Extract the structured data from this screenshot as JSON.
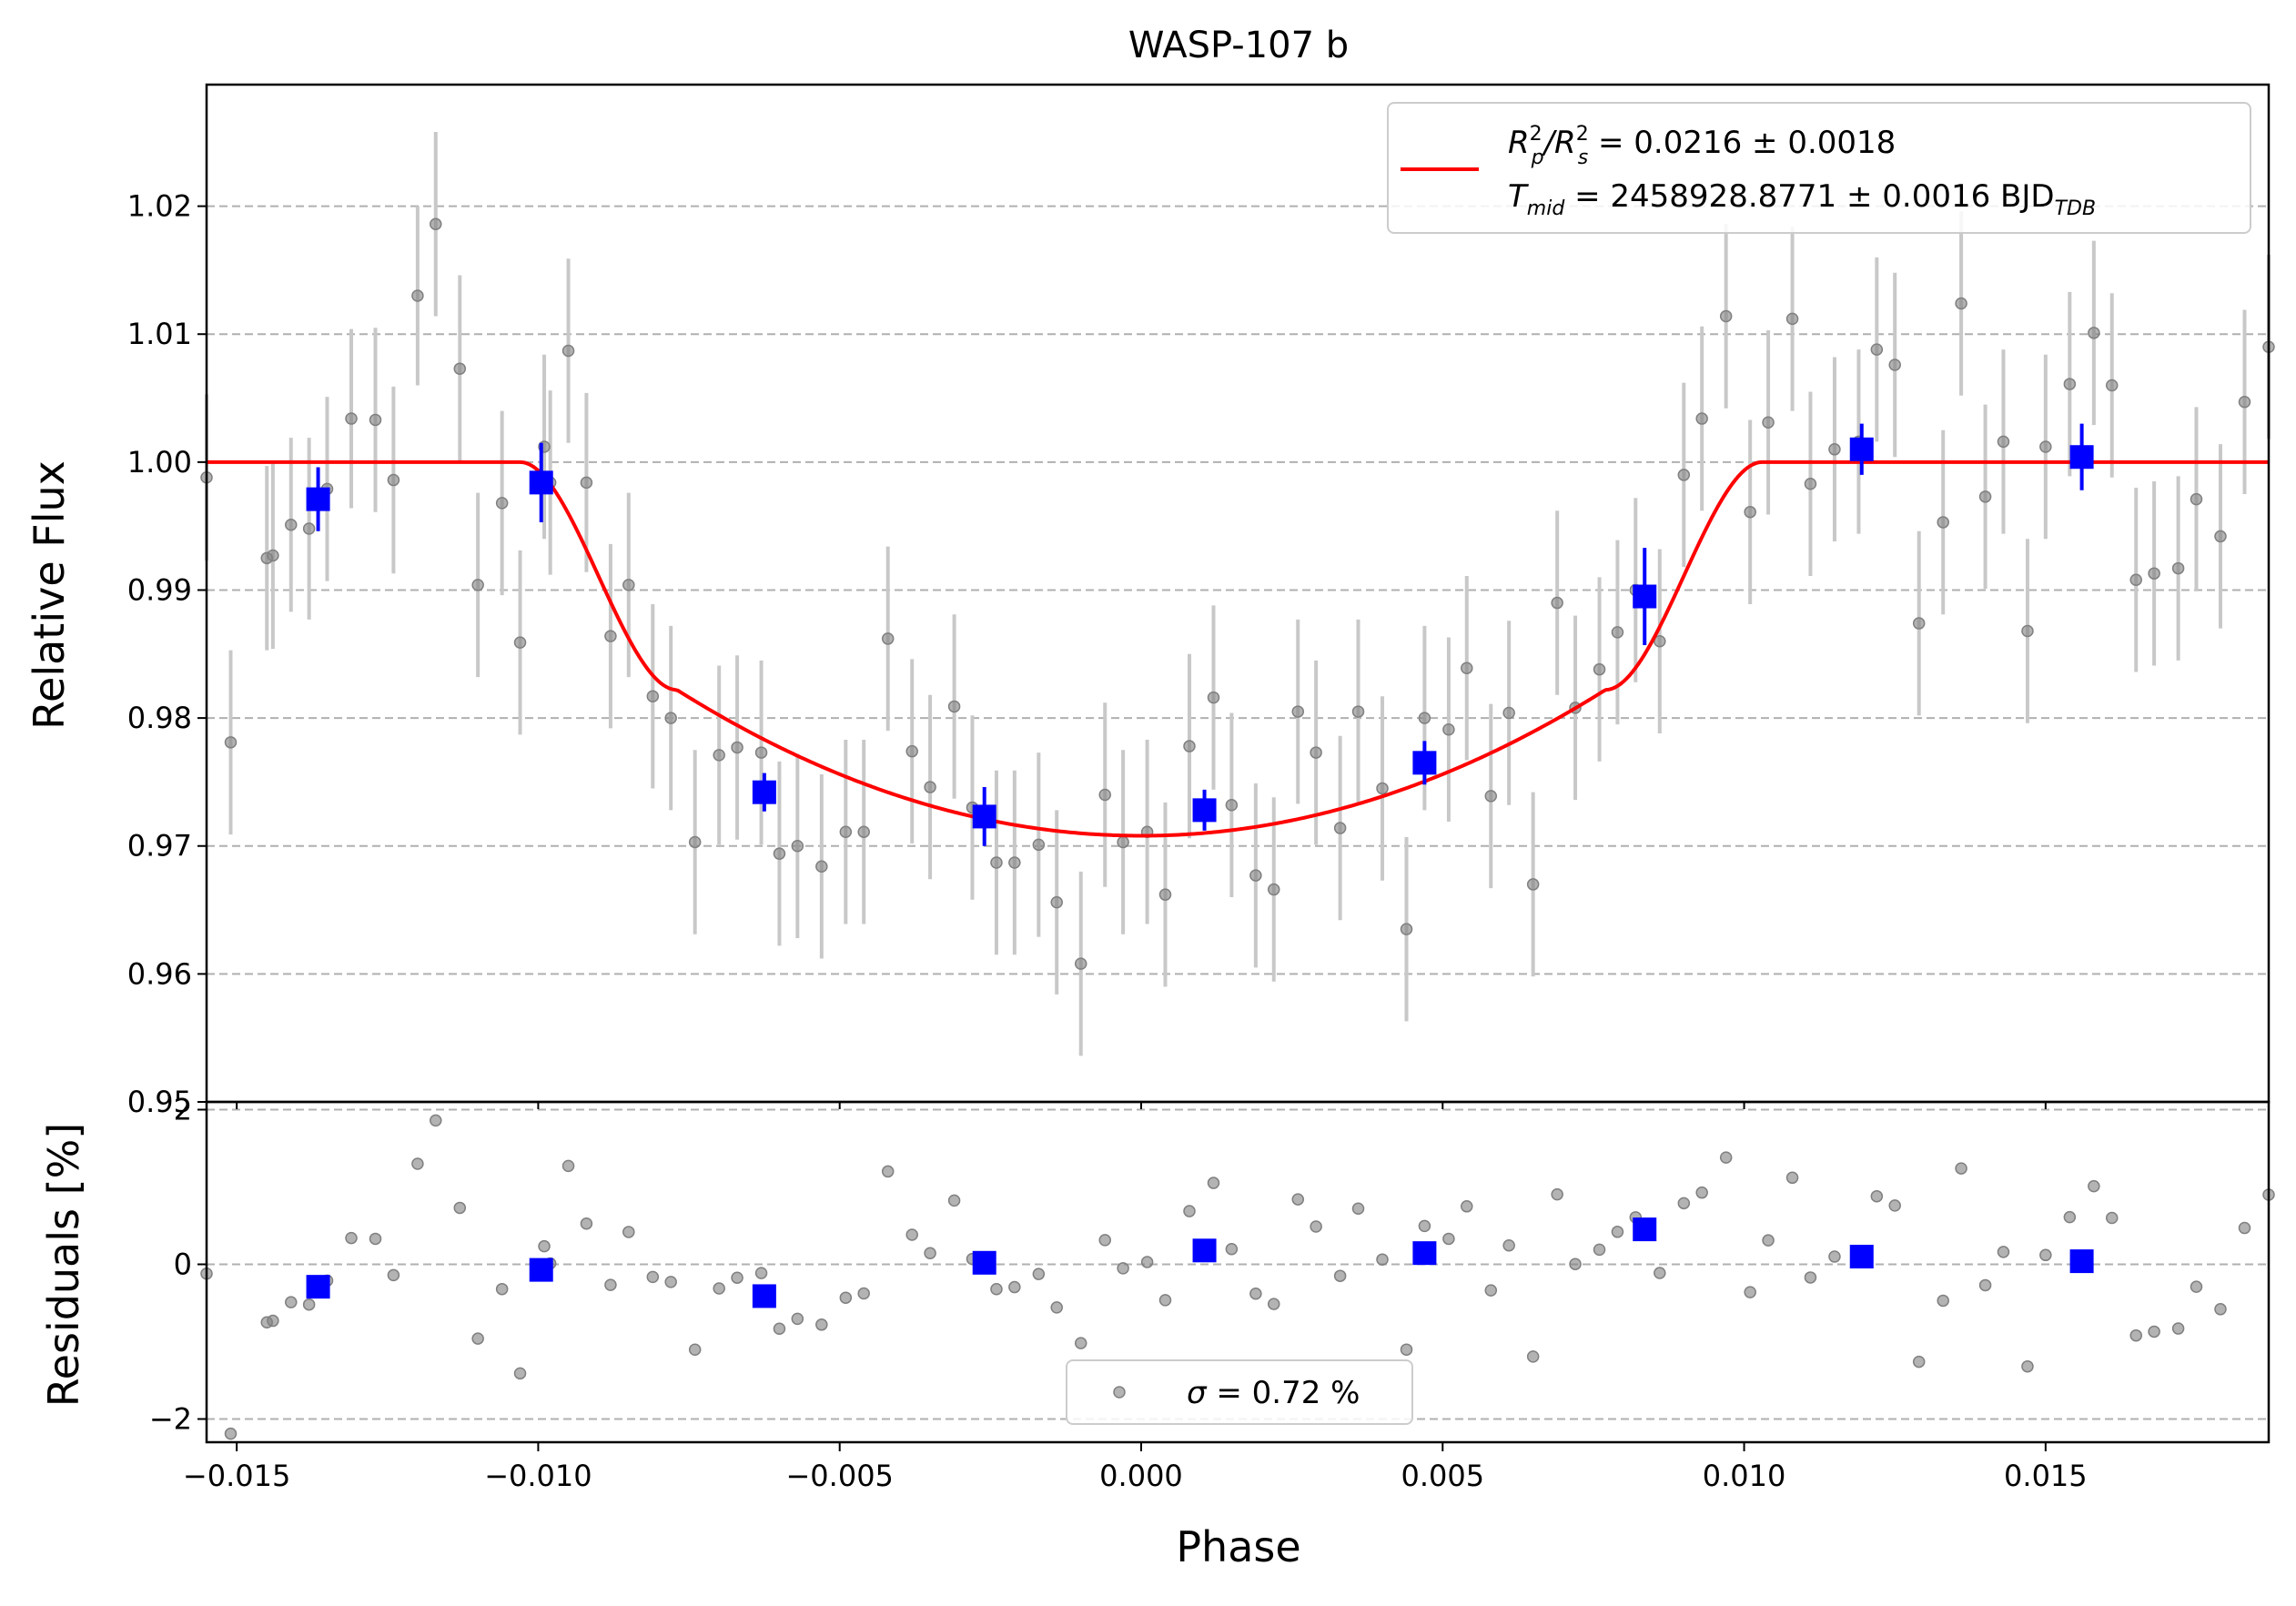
{
  "chart_data": [
    {
      "panel": "light-curve",
      "type": "scatter",
      "title": "WASP-107 b",
      "xlabel": "Phase",
      "ylabel": "Relative Flux",
      "xlim": [
        -0.0155,
        0.0187
      ],
      "ylim": [
        0.95,
        1.0295
      ],
      "xticks": [
        -0.015,
        -0.01,
        -0.005,
        0.0,
        0.005,
        0.01,
        0.015
      ],
      "xtick_labels": [
        "−0.015",
        "−0.010",
        "−0.005",
        "0.000",
        "0.005",
        "0.010",
        "0.015"
      ],
      "yticks": [
        0.95,
        0.96,
        0.97,
        0.98,
        0.99,
        1.0,
        1.01,
        1.02
      ],
      "ytick_labels": [
        "0.95",
        "0.96",
        "0.97",
        "0.98",
        "0.99",
        "1.00",
        "1.01",
        "1.02"
      ],
      "grid": "horizontal dashed",
      "legend_position": "top-right",
      "legend": {
        "line1": {
          "prefix": "R",
          "sub1": "p",
          "mid": "/R",
          "sub2": "s",
          "rest": " = 0.0216 ± 0.0018",
          "sup": "2"
        },
        "line2": {
          "prefix": "T",
          "sub1": "mid",
          "rest": " = 2458928.8771 ± 0.0016 BJD",
          "sub2": "TDB"
        }
      },
      "colors": {
        "data": "#808080",
        "error": "#c8c8c8",
        "binned": "#0000ff",
        "model": "#ff0000",
        "grid": "#b0b0b0"
      },
      "data_points": [
        [
          -0.0155,
          0.9988,
          0.0065
        ],
        [
          -0.0151,
          0.9781,
          0.0072
        ],
        [
          -0.0145,
          0.9925,
          0.0072
        ],
        [
          -0.0144,
          0.9927,
          0.0073
        ],
        [
          -0.0141,
          0.9951,
          0.0068
        ],
        [
          -0.0138,
          0.9948,
          0.0071
        ],
        [
          -0.0135,
          0.9979,
          0.0072
        ],
        [
          -0.0131,
          1.0034,
          0.007
        ],
        [
          -0.0127,
          1.0033,
          0.0072
        ],
        [
          -0.0124,
          0.9986,
          0.0073
        ],
        [
          -0.012,
          1.013,
          0.007
        ],
        [
          -0.0117,
          1.0186,
          0.0072
        ],
        [
          -0.0113,
          1.0073,
          0.0073
        ],
        [
          -0.011,
          0.9904,
          0.0072
        ],
        [
          -0.0106,
          0.9968,
          0.0072
        ],
        [
          -0.0103,
          0.9859,
          0.0072
        ],
        [
          -0.0099,
          1.0012,
          0.0072
        ],
        [
          -0.0098,
          0.9984,
          0.0072
        ],
        [
          -0.0095,
          1.0087,
          0.0072
        ],
        [
          -0.0092,
          0.9984,
          0.007
        ],
        [
          -0.0088,
          0.9864,
          0.0072
        ],
        [
          -0.0085,
          0.9904,
          0.0072
        ],
        [
          -0.0081,
          0.9817,
          0.0072
        ],
        [
          -0.0078,
          0.98,
          0.0072
        ],
        [
          -0.0074,
          0.9703,
          0.0072
        ],
        [
          -0.007,
          0.9771,
          0.007
        ],
        [
          -0.0067,
          0.9777,
          0.0072
        ],
        [
          -0.0063,
          0.9773,
          0.0072
        ],
        [
          -0.006,
          0.9694,
          0.0072
        ],
        [
          -0.0057,
          0.97,
          0.0072
        ],
        [
          -0.0053,
          0.9684,
          0.0072
        ],
        [
          -0.0049,
          0.9711,
          0.0072
        ],
        [
          -0.0046,
          0.9711,
          0.0072
        ],
        [
          -0.0042,
          0.9862,
          0.0072
        ],
        [
          -0.0038,
          0.9774,
          0.0072
        ],
        [
          -0.0035,
          0.9746,
          0.0072
        ],
        [
          -0.0031,
          0.9809,
          0.0072
        ],
        [
          -0.0028,
          0.973,
          0.0072
        ],
        [
          -0.0024,
          0.9687,
          0.0072
        ],
        [
          -0.0021,
          0.9687,
          0.0072
        ],
        [
          -0.0017,
          0.9701,
          0.0072
        ],
        [
          -0.0014,
          0.9656,
          0.0072
        ],
        [
          -0.001,
          0.9608,
          0.0072
        ],
        [
          -0.0006,
          0.974,
          0.0072
        ],
        [
          -0.0003,
          0.9703,
          0.0072
        ],
        [
          0.0001,
          0.9711,
          0.0072
        ],
        [
          0.0004,
          0.9662,
          0.0072
        ],
        [
          0.0008,
          0.9778,
          0.0072
        ],
        [
          0.0012,
          0.9816,
          0.0072
        ],
        [
          0.0015,
          0.9732,
          0.0072
        ],
        [
          0.0019,
          0.9677,
          0.0072
        ],
        [
          0.0022,
          0.9666,
          0.0072
        ],
        [
          0.0026,
          0.9805,
          0.0072
        ],
        [
          0.0029,
          0.9773,
          0.0072
        ],
        [
          0.0033,
          0.9714,
          0.0072
        ],
        [
          0.0036,
          0.9805,
          0.0072
        ],
        [
          0.004,
          0.9745,
          0.0072
        ],
        [
          0.0044,
          0.9635,
          0.0072
        ],
        [
          0.0047,
          0.98,
          0.0072
        ],
        [
          0.0051,
          0.9791,
          0.0072
        ],
        [
          0.0054,
          0.9839,
          0.0072
        ],
        [
          0.0058,
          0.9739,
          0.0072
        ],
        [
          0.0061,
          0.9804,
          0.0072
        ],
        [
          0.0065,
          0.967,
          0.0072
        ],
        [
          0.0069,
          0.989,
          0.0072
        ],
        [
          0.0072,
          0.9808,
          0.0072
        ],
        [
          0.0076,
          0.9838,
          0.0072
        ],
        [
          0.0079,
          0.9867,
          0.0072
        ],
        [
          0.0082,
          0.99,
          0.0072
        ],
        [
          0.0086,
          0.986,
          0.0072
        ],
        [
          0.009,
          0.999,
          0.0072
        ],
        [
          0.0093,
          1.0034,
          0.0072
        ],
        [
          0.0097,
          1.0114,
          0.0072
        ],
        [
          0.0101,
          0.9961,
          0.0072
        ],
        [
          0.0104,
          1.0031,
          0.0072
        ],
        [
          0.0108,
          1.0112,
          0.0072
        ],
        [
          0.0111,
          0.9983,
          0.0072
        ],
        [
          0.0115,
          1.001,
          0.0072
        ],
        [
          0.0119,
          1.0016,
          0.0072
        ],
        [
          0.0122,
          1.0088,
          0.0072
        ],
        [
          0.0125,
          1.0076,
          0.0072
        ],
        [
          0.0129,
          0.9874,
          0.0072
        ],
        [
          0.0133,
          0.9953,
          0.0072
        ],
        [
          0.0136,
          1.0124,
          0.0072
        ],
        [
          0.014,
          0.9973,
          0.0072
        ],
        [
          0.0143,
          1.0016,
          0.0072
        ],
        [
          0.0147,
          0.9868,
          0.0072
        ],
        [
          0.015,
          1.0012,
          0.0072
        ],
        [
          0.0154,
          1.0061,
          0.0072
        ],
        [
          0.0158,
          1.0101,
          0.0072
        ],
        [
          0.0161,
          1.006,
          0.0072
        ],
        [
          0.0165,
          0.9908,
          0.0072
        ],
        [
          0.0168,
          0.9913,
          0.0072
        ],
        [
          0.0172,
          0.9917,
          0.0072
        ],
        [
          0.0175,
          0.9971,
          0.0072
        ],
        [
          0.0179,
          0.9942,
          0.0072
        ],
        [
          0.0183,
          1.0047,
          0.0072
        ],
        [
          0.0187,
          1.009,
          0.0072
        ]
      ],
      "binned_points": [
        [
          -0.01365,
          0.9971,
          0.0025
        ],
        [
          -0.00995,
          0.9984,
          0.0031
        ],
        [
          -0.00625,
          0.9742,
          0.0015
        ],
        [
          -0.0026,
          0.9723,
          0.0023
        ],
        [
          0.00105,
          0.9728,
          0.0016
        ],
        [
          0.0047,
          0.9765,
          0.0017
        ],
        [
          0.00835,
          0.9895,
          0.0038
        ],
        [
          0.01195,
          1.001,
          0.002
        ],
        [
          0.0156,
          1.0004,
          0.0026
        ]
      ],
      "model": {
        "depth": 0.0216,
        "t1": -0.0103,
        "t2": -0.0076,
        "t3": 0.0077,
        "t4": 0.0103,
        "in_transit_ingress_level": 0.9822,
        "minimum": 0.9708
      }
    },
    {
      "panel": "residuals",
      "type": "scatter",
      "xlabel": "Phase",
      "ylabel": "Residuals [%]",
      "xlim": [
        -0.0155,
        0.0187
      ],
      "ylim": [
        -2.3,
        2.1
      ],
      "yticks": [
        -2,
        0,
        2
      ],
      "ytick_labels": [
        "−2",
        "0",
        "2"
      ],
      "legend_position": "bottom-center",
      "legend": {
        "label": "σ = 0.72 %"
      }
    }
  ]
}
